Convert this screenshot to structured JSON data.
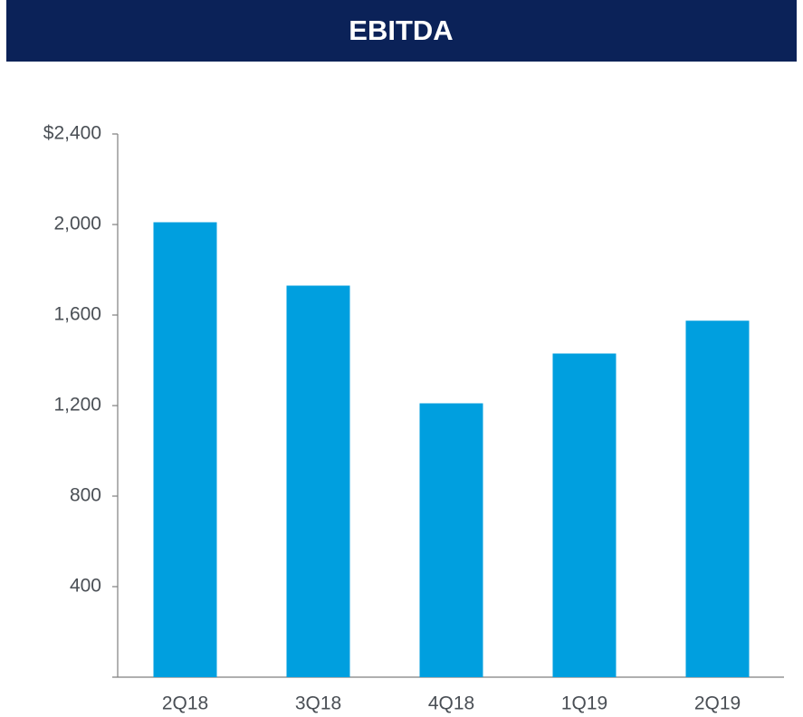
{
  "chart_data": {
    "type": "bar",
    "title": "EBITDA",
    "categories": [
      "2Q18",
      "3Q18",
      "4Q18",
      "1Q19",
      "2Q19"
    ],
    "values": [
      2010,
      1730,
      1210,
      1430,
      1575
    ],
    "color": "#009fdf",
    "ylim": [
      0,
      2400
    ],
    "yticks": [
      400,
      {
        "value": 800,
        "label": "800"
      },
      {
        "value": 1200,
        "label": "1,200"
      },
      {
        "value": 1600,
        "label": "1,600"
      },
      {
        "value": 2000,
        "label": "2,000"
      },
      {
        "value": 2400,
        "label": "$2,400"
      }
    ],
    "grid": false
  }
}
